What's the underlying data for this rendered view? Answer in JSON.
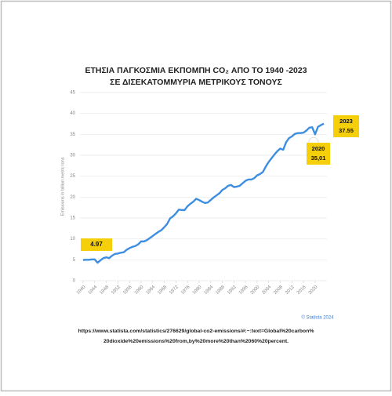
{
  "chart_data": {
    "type": "line",
    "title": "ΕΤΗΣΙΑ ΠΑΓΚΟΣΜΙΑ ΕΚΠΟΜΠΗ CO₂ ΑΠΟ ΤΟ 1940 -2023",
    "subtitle": "ΣΕ ΔΙΣΕΚΑΤΟΜΜΥΡΙΑ ΜΕΤΡΙΚΟΥΣ ΤΟΝΟΥΣ",
    "y_label": "Emissions in billion metric tons",
    "x": [
      1940,
      1941,
      1942,
      1943,
      1944,
      1945,
      1946,
      1947,
      1948,
      1949,
      1950,
      1951,
      1952,
      1953,
      1954,
      1955,
      1956,
      1957,
      1958,
      1959,
      1960,
      1961,
      1962,
      1963,
      1964,
      1965,
      1966,
      1967,
      1968,
      1969,
      1970,
      1971,
      1972,
      1973,
      1974,
      1975,
      1976,
      1977,
      1978,
      1979,
      1980,
      1981,
      1982,
      1983,
      1984,
      1985,
      1986,
      1987,
      1988,
      1989,
      1990,
      1991,
      1992,
      1993,
      1994,
      1995,
      1996,
      1997,
      1998,
      1999,
      2000,
      2001,
      2002,
      2003,
      2004,
      2005,
      2006,
      2007,
      2008,
      2009,
      2010,
      2011,
      2012,
      2013,
      2014,
      2015,
      2016,
      2017,
      2018,
      2019,
      2020,
      2021,
      2022,
      2023
    ],
    "series": [
      {
        "color": "#3d8ee0",
        "values": [
          4.97,
          5.0,
          5.0,
          5.1,
          5.1,
          4.3,
          4.9,
          5.4,
          5.6,
          5.4,
          6.0,
          6.4,
          6.5,
          6.7,
          6.8,
          7.4,
          7.8,
          8.1,
          8.3,
          8.7,
          9.4,
          9.4,
          9.7,
          10.2,
          10.7,
          11.2,
          11.7,
          12.1,
          12.8,
          13.6,
          14.9,
          15.4,
          16.1,
          17.0,
          16.9,
          16.9,
          17.8,
          18.4,
          18.9,
          19.6,
          19.3,
          18.9,
          18.6,
          18.7,
          19.3,
          19.9,
          20.4,
          20.9,
          21.7,
          22.1,
          22.7,
          22.9,
          22.4,
          22.5,
          22.7,
          23.3,
          23.9,
          24.2,
          24.2,
          24.5,
          25.2,
          25.5,
          26.0,
          27.3,
          28.4,
          29.3,
          30.2,
          31.0,
          31.6,
          31.3,
          33.1,
          34.1,
          34.5,
          35.1,
          35.3,
          35.3,
          35.4,
          35.9,
          36.6,
          36.7,
          35.01,
          36.8,
          37.2,
          37.55
        ]
      }
    ],
    "xlim": [
      1940,
      2023
    ],
    "xticks": [
      1940,
      1944,
      1948,
      1952,
      1956,
      1960,
      1964,
      1968,
      1972,
      1976,
      1980,
      1984,
      1988,
      1992,
      1996,
      2000,
      2004,
      2008,
      2012,
      2016,
      2020
    ],
    "ylim": [
      0,
      45
    ],
    "yticks": [
      0,
      5,
      10,
      15,
      20,
      25,
      30,
      35,
      40,
      45
    ],
    "grid": true,
    "annotations": [
      {
        "index": 0,
        "label": "4.97"
      },
      {
        "index": 80,
        "year": "2020",
        "label": "35,01"
      },
      {
        "index": 83,
        "year": "2023",
        "label": "37.55"
      }
    ],
    "credit": "© Statista 2024",
    "source": [
      "https://www.statista.com/statistics/276629/global-co2-emissions/#:~:text=Global%20carbon%",
      "20dioxide%20emissions%20from,by%20more%20than%2060%20percent."
    ]
  }
}
